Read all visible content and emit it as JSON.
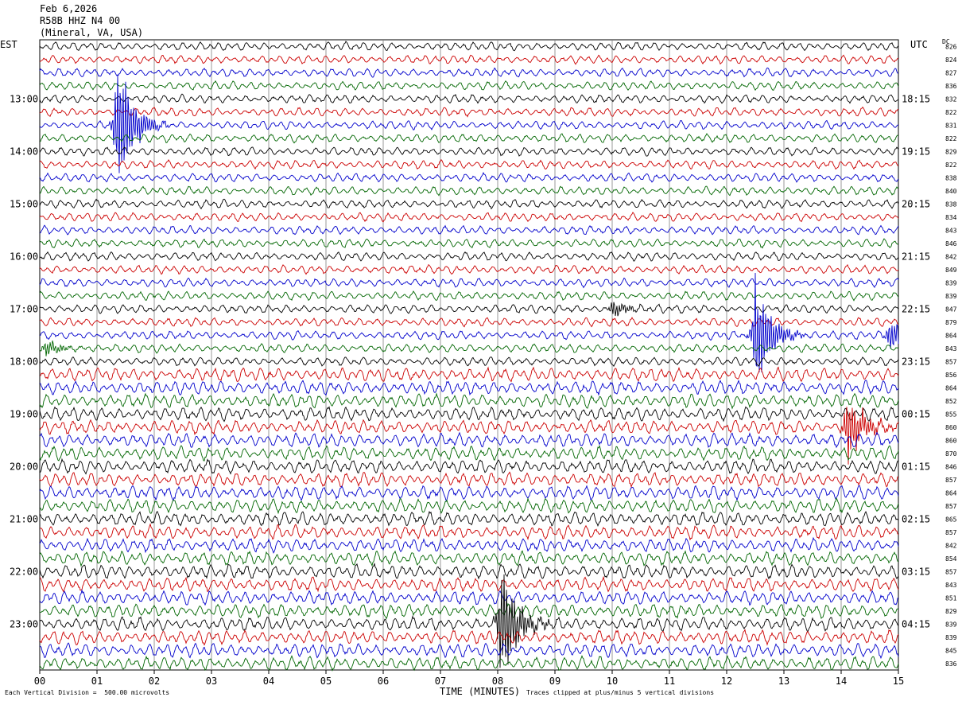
{
  "header": {
    "date": "Feb 6,2026",
    "station": "R58B HHZ N4 00",
    "location": "(Mineral, VA, USA)"
  },
  "left_tz": "EST",
  "right_tz": "UTC",
  "dc_label": "DC",
  "footer": {
    "scale_note": "Each Vertical Division =  500.00 microvolts",
    "clip_note": "Traces clipped at plus/minus 5 vertical divisions",
    "xlabel": "TIME (MINUTES)"
  },
  "colors": {
    "trace_cycle": [
      "#000000",
      "#cc0000",
      "#0000cc",
      "#006600"
    ],
    "grid": "#808080"
  },
  "chart_data": {
    "type": "line",
    "description_type": "helicorder",
    "xlabel": "TIME (MINUTES)",
    "xlim": [
      0,
      15
    ],
    "x_ticks": [
      "00",
      "01",
      "02",
      "03",
      "04",
      "05",
      "06",
      "07",
      "08",
      "09",
      "10",
      "11",
      "12",
      "13",
      "14",
      "15"
    ],
    "minutes_per_row": 15,
    "row_count": 48,
    "left_hour_labels": [
      "13:00",
      "14:00",
      "15:00",
      "16:00",
      "17:00",
      "18:00",
      "19:00",
      "20:00",
      "21:00",
      "22:00",
      "23:00"
    ],
    "right_hour_labels": [
      "18:15",
      "19:15",
      "20:15",
      "21:15",
      "22:15",
      "23:15",
      "00:15",
      "01:15",
      "02:15",
      "03:15",
      "04:15"
    ],
    "hour_label_row_start": 4,
    "dc_offsets": [
      826,
      824,
      827,
      836,
      832,
      822,
      831,
      822,
      829,
      822,
      838,
      840,
      838,
      834,
      843,
      846,
      842,
      849,
      839,
      839,
      847,
      879,
      864,
      843,
      857,
      856,
      864,
      852,
      855,
      860,
      860,
      870,
      846,
      857,
      864,
      857,
      865,
      857,
      842,
      854,
      857,
      843,
      851,
      829,
      839,
      839,
      845,
      836
    ],
    "events": [
      {
        "row": 6,
        "minute": 1.35,
        "amplitude": 10
      },
      {
        "row": 22,
        "minute": 12.5,
        "amplitude": 8
      },
      {
        "row": 22,
        "minute": 14.85,
        "amplitude": 2.5
      },
      {
        "row": 29,
        "minute": 14.1,
        "amplitude": 5
      },
      {
        "row": 44,
        "minute": 8.05,
        "amplitude": 9
      },
      {
        "row": 20,
        "minute": 10.0,
        "amplitude": 1.2
      },
      {
        "row": 23,
        "minute": 0.1,
        "amplitude": 1.2
      }
    ]
  }
}
